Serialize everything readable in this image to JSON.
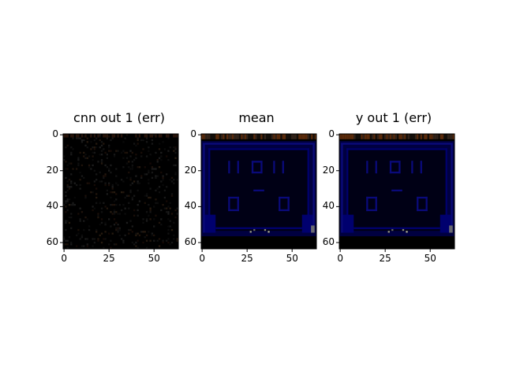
{
  "chart_data": [
    {
      "type": "heatmap",
      "title": "cnn out 1 (err)",
      "xlabel": "",
      "ylabel": "",
      "xlim": [
        0,
        63
      ],
      "ylim": [
        63,
        0
      ],
      "x_ticks": [
        0,
        25,
        50
      ],
      "y_ticks": [
        0,
        20,
        40,
        60
      ],
      "image_size": [
        64,
        64
      ],
      "content": "near-black noise map"
    },
    {
      "type": "heatmap",
      "title": "mean",
      "xlabel": "",
      "ylabel": "",
      "xlim": [
        0,
        63
      ],
      "ylim": [
        63,
        0
      ],
      "x_ticks": [
        0,
        25,
        50
      ],
      "y_ticks": [
        0,
        20,
        40,
        60
      ],
      "image_size": [
        64,
        64
      ],
      "content": "dark blue game-board frame image"
    },
    {
      "type": "heatmap",
      "title": "y out 1 (err)",
      "xlabel": "",
      "ylabel": "",
      "xlim": [
        0,
        63
      ],
      "ylim": [
        63,
        0
      ],
      "x_ticks": [
        0,
        25,
        50
      ],
      "y_ticks": [
        0,
        20,
        40,
        60
      ],
      "image_size": [
        64,
        64
      ],
      "content": "dark blue game-board frame image"
    }
  ],
  "colors": {
    "background": "#000000",
    "board_blue": "#00006e",
    "frame_blue": "#0a0a7a",
    "dark_navy": "#000040",
    "orange_strip": "#5a2a0a"
  }
}
